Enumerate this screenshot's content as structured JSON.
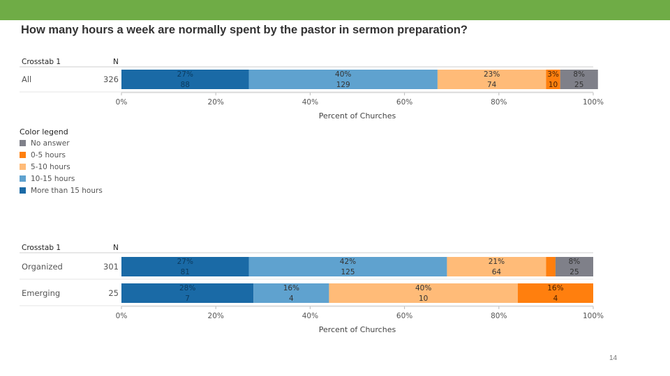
{
  "slide": {
    "title": "How many hours a week are normally spent by the pastor in sermon preparation?",
    "page_number": "14",
    "accent_color": "#6fac46"
  },
  "legend": {
    "title": "Color legend",
    "items": [
      {
        "label": "No answer",
        "color": "#7f8089"
      },
      {
        "label": "0-5 hours",
        "color": "#ff7f0e"
      },
      {
        "label": "5-10 hours",
        "color": "#ffbb78"
      },
      {
        "label": "10-15 hours",
        "color": "#5fa2cf"
      },
      {
        "label": "More than 15 hours",
        "color": "#1a6aa6"
      }
    ]
  },
  "chart_data": [
    {
      "type": "bar",
      "orientation": "horizontal",
      "stacked": true,
      "row_header": "Crosstab 1",
      "n_header": "N",
      "xlabel": "Percent of Churches",
      "xlim": [
        0,
        100
      ],
      "x_ticks": [
        "0%",
        "20%",
        "40%",
        "60%",
        "80%",
        "100%"
      ],
      "series_names": [
        "More than 15 hours",
        "10-15 hours",
        "5-10 hours",
        "0-5 hours",
        "No answer"
      ],
      "colors": [
        "#1a6aa6",
        "#5fa2cf",
        "#ffbb78",
        "#ff7f0e",
        "#7f8089"
      ],
      "rows": [
        {
          "label": "All",
          "n": "326",
          "percents": [
            27,
            40,
            23,
            3,
            8
          ],
          "pct_labels": [
            "27%",
            "40%",
            "23%",
            "3%",
            "8%"
          ],
          "count_labels": [
            "88",
            "129",
            "74",
            "10",
            "25"
          ]
        }
      ]
    },
    {
      "type": "bar",
      "orientation": "horizontal",
      "stacked": true,
      "row_header": "Crosstab 1",
      "n_header": "N",
      "xlabel": "Percent of Churches",
      "xlim": [
        0,
        100
      ],
      "x_ticks": [
        "0%",
        "20%",
        "40%",
        "60%",
        "80%",
        "100%"
      ],
      "series_names": [
        "More than 15 hours",
        "10-15 hours",
        "5-10 hours",
        "0-5 hours",
        "No answer"
      ],
      "colors": [
        "#1a6aa6",
        "#5fa2cf",
        "#ffbb78",
        "#ff7f0e",
        "#7f8089"
      ],
      "rows": [
        {
          "label": "Organized",
          "n": "301",
          "percents": [
            27,
            42,
            21,
            2,
            8
          ],
          "pct_labels": [
            "27%",
            "42%",
            "21%",
            "",
            "8%"
          ],
          "count_labels": [
            "81",
            "125",
            "64",
            "",
            "25"
          ]
        },
        {
          "label": "Emerging",
          "n": "25",
          "percents": [
            28,
            16,
            40,
            16,
            0
          ],
          "pct_labels": [
            "28%",
            "16%",
            "40%",
            "16%",
            ""
          ],
          "count_labels": [
            "7",
            "4",
            "10",
            "4",
            ""
          ]
        }
      ]
    }
  ]
}
